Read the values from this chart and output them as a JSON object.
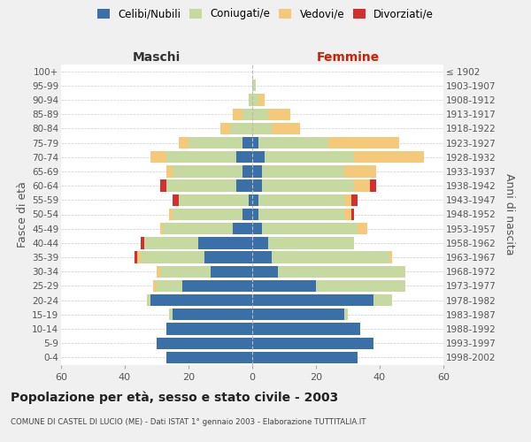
{
  "age_groups": [
    "0-4",
    "5-9",
    "10-14",
    "15-19",
    "20-24",
    "25-29",
    "30-34",
    "35-39",
    "40-44",
    "45-49",
    "50-54",
    "55-59",
    "60-64",
    "65-69",
    "70-74",
    "75-79",
    "80-84",
    "85-89",
    "90-94",
    "95-99",
    "100+"
  ],
  "birth_years": [
    "1998-2002",
    "1993-1997",
    "1988-1992",
    "1983-1987",
    "1978-1982",
    "1973-1977",
    "1968-1972",
    "1963-1967",
    "1958-1962",
    "1953-1957",
    "1948-1952",
    "1943-1947",
    "1938-1942",
    "1933-1937",
    "1928-1932",
    "1923-1927",
    "1918-1922",
    "1913-1917",
    "1908-1912",
    "1903-1907",
    "≤ 1902"
  ],
  "maschi": {
    "celibi": [
      27,
      30,
      27,
      25,
      32,
      22,
      13,
      15,
      17,
      6,
      3,
      1,
      5,
      3,
      5,
      3,
      0,
      0,
      0,
      0,
      0
    ],
    "coniugati": [
      0,
      0,
      0,
      1,
      1,
      8,
      16,
      20,
      17,
      22,
      22,
      22,
      22,
      22,
      22,
      17,
      7,
      3,
      1,
      0,
      0
    ],
    "vedovi": [
      0,
      0,
      0,
      0,
      0,
      1,
      1,
      1,
      0,
      1,
      1,
      0,
      0,
      2,
      5,
      3,
      3,
      3,
      0,
      0,
      0
    ],
    "divorziati": [
      0,
      0,
      0,
      0,
      0,
      0,
      0,
      1,
      1,
      0,
      0,
      2,
      2,
      0,
      0,
      0,
      0,
      0,
      0,
      0,
      0
    ]
  },
  "femmine": {
    "nubili": [
      33,
      38,
      34,
      29,
      38,
      20,
      8,
      6,
      5,
      3,
      2,
      2,
      3,
      3,
      4,
      2,
      0,
      0,
      0,
      0,
      0
    ],
    "coniugate": [
      0,
      0,
      0,
      1,
      6,
      28,
      40,
      37,
      27,
      30,
      27,
      27,
      29,
      26,
      28,
      22,
      6,
      5,
      2,
      1,
      0
    ],
    "vedove": [
      0,
      0,
      0,
      0,
      0,
      0,
      0,
      1,
      0,
      3,
      2,
      2,
      5,
      10,
      22,
      22,
      9,
      7,
      2,
      0,
      0
    ],
    "divorziate": [
      0,
      0,
      0,
      0,
      0,
      0,
      0,
      0,
      0,
      0,
      1,
      2,
      2,
      0,
      0,
      0,
      0,
      0,
      0,
      0,
      0
    ]
  },
  "colors": {
    "celibi": "#3a6fa8",
    "coniugati": "#c5d9a0",
    "vedovi": "#f5c97a",
    "divorziati": "#d32f2f"
  },
  "xlim": 60,
  "title": "Popolazione per età, sesso e stato civile - 2003",
  "subtitle": "COMUNE DI CASTEL DI LUCIO (ME) - Dati ISTAT 1° gennaio 2003 - Elaborazione TUTTITALIA.IT",
  "ylabel_left": "Fasce di età",
  "ylabel_right": "Anni di nascita",
  "xlabel_left": "Maschi",
  "xlabel_right": "Femmine",
  "bg_color": "#f0f0f0",
  "plot_bg": "#ffffff"
}
